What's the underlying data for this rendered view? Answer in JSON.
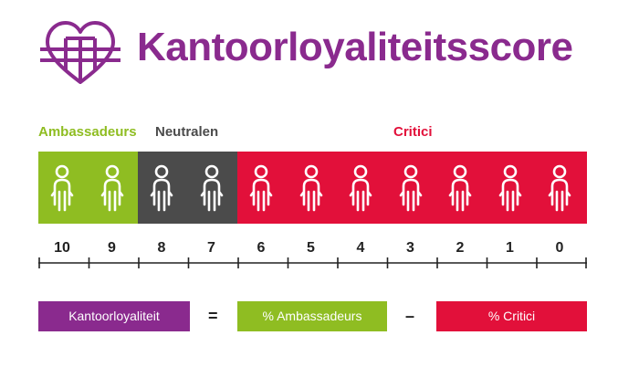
{
  "title": "Kantoorloyaliteitsscore",
  "colors": {
    "purple": "#8a2a8e",
    "green": "#8fbd22",
    "gray": "#4b4b4b",
    "red": "#e2103a"
  },
  "groups": {
    "ambassadeurs": "Ambassadeurs",
    "neutralen": "Neutralen",
    "critici": "Critici"
  },
  "scale": [
    "10",
    "9",
    "8",
    "7",
    "6",
    "5",
    "4",
    "3",
    "2",
    "1",
    "0"
  ],
  "formula": {
    "result": "Kantoorloyaliteit",
    "equals": "=",
    "term1": "% Ambassadeurs",
    "minus": "–",
    "term2": "% Critici"
  }
}
